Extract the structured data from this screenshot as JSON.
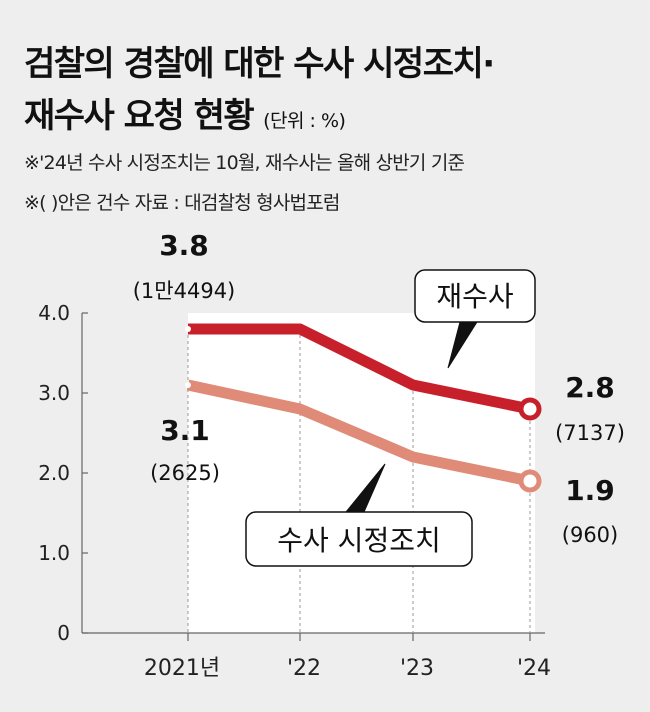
{
  "header": {
    "title_line1": "검찰의 경찰에 대한 수사 시정조치·",
    "title_line2": "재수사 요청 현황",
    "unit": "(단위 : %)",
    "note1": "※'24년 수사 시정조치는 10월, 재수사는 올해 상반기 기준",
    "note2": "※(  )안은 건수     자료 : 대검찰청 형사법포럼"
  },
  "chart_data": {
    "type": "line",
    "categories": [
      "2021년",
      "'22",
      "'23",
      "'24"
    ],
    "ylim": [
      0,
      4
    ],
    "yticks": [
      "0",
      "1.0",
      "2.0",
      "3.0",
      "4.0"
    ],
    "grid": false,
    "series": [
      {
        "name": "재수사",
        "values": [
          3.8,
          3.8,
          3.1,
          2.8
        ],
        "color": "#c8202a",
        "labels": [
          {
            "index": 0,
            "value": "3.8",
            "count": "(1만4494)"
          },
          {
            "index": 3,
            "value": "2.8",
            "count": "(7137)"
          }
        ]
      },
      {
        "name": "수사 시정조치",
        "values": [
          3.1,
          2.8,
          2.2,
          1.9
        ],
        "color": "#e08a78",
        "labels": [
          {
            "index": 0,
            "value": "3.1",
            "count": "(2625)"
          },
          {
            "index": 3,
            "value": "1.9",
            "count": "(960)"
          }
        ]
      }
    ]
  }
}
